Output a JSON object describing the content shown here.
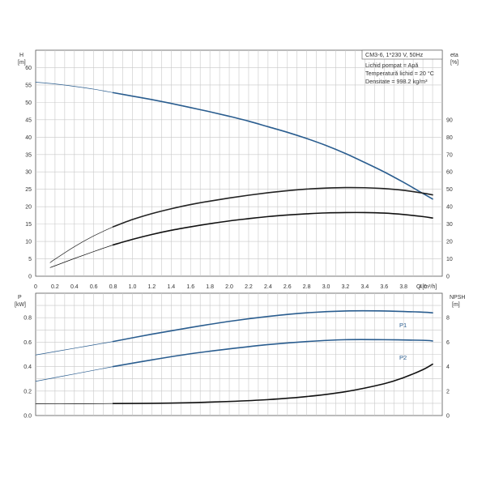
{
  "chart_data": [
    {
      "id": "top",
      "type": "line",
      "x_axis": {
        "label": "Q [m³/h]",
        "range": [
          0,
          4.2
        ],
        "ticks": [
          0,
          0.2,
          0.4,
          0.6,
          0.8,
          1.0,
          1.2,
          1.4,
          1.6,
          1.8,
          2.0,
          2.2,
          2.4,
          2.6,
          2.8,
          3.0,
          3.2,
          3.4,
          3.6,
          3.8,
          4.0
        ]
      },
      "y_left": {
        "label_top": "H",
        "label_unit": "[m]",
        "range": [
          0,
          65
        ],
        "ticks": [
          0,
          5,
          10,
          15,
          20,
          25,
          30,
          35,
          40,
          45,
          50,
          55,
          60
        ]
      },
      "y_right": {
        "label_top": "eta",
        "label_unit": "[%]",
        "range": [
          0,
          130
        ],
        "ticks": [
          0,
          10,
          20,
          30,
          40,
          50,
          60,
          70,
          80,
          90
        ]
      },
      "info_lines": [
        "CM3-6, 1*230 V, 50Hz",
        "Lichid pompat = Apă",
        "Temperatură lichid = 20 °C",
        "Densitate = 998.2 kg/m³"
      ],
      "series": [
        {
          "axis": "left",
          "color": "#2a5d8f",
          "x": [
            0,
            0.2,
            0.4,
            0.6,
            0.8,
            1.0,
            1.2,
            1.4,
            1.6,
            1.8,
            2.0,
            2.2,
            2.4,
            2.6,
            2.8,
            3.0,
            3.2,
            3.4,
            3.6,
            3.8,
            4.0,
            4.1
          ],
          "y": [
            55.8,
            55.3,
            54.6,
            53.8,
            52.8,
            51.8,
            50.8,
            49.7,
            48.5,
            47.3,
            46.0,
            44.6,
            43.0,
            41.4,
            39.6,
            37.6,
            35.3,
            32.7,
            30.0,
            27.0,
            23.8,
            22.2
          ],
          "operating_from": 0.8
        },
        {
          "axis": "right",
          "color": "#222222",
          "x": [
            0.15,
            0.2,
            0.4,
            0.6,
            0.8,
            1.0,
            1.2,
            1.4,
            1.6,
            1.8,
            2.0,
            2.2,
            2.4,
            2.6,
            2.8,
            3.0,
            3.2,
            3.4,
            3.6,
            3.8,
            4.0,
            4.1
          ],
          "y": [
            7.8,
            9.8,
            17.0,
            23.2,
            28.4,
            32.6,
            36.0,
            38.8,
            41.2,
            43.2,
            45.0,
            46.6,
            48.0,
            49.2,
            50.1,
            50.7,
            51.0,
            50.9,
            50.4,
            49.4,
            47.8,
            46.8
          ],
          "operating_from": 0.8
        },
        {
          "axis": "right",
          "color": "#111111",
          "x": [
            0.15,
            0.2,
            0.4,
            0.6,
            0.8,
            1.0,
            1.2,
            1.4,
            1.6,
            1.8,
            2.0,
            2.2,
            2.4,
            2.6,
            2.8,
            3.0,
            3.2,
            3.4,
            3.6,
            3.8,
            4.0,
            4.1
          ],
          "y": [
            5.0,
            6.0,
            10.2,
            14.2,
            18.0,
            21.2,
            24.0,
            26.4,
            28.4,
            30.2,
            31.8,
            33.1,
            34.3,
            35.2,
            35.9,
            36.4,
            36.6,
            36.6,
            36.3,
            35.5,
            34.3,
            33.5
          ],
          "operating_from": 0.8
        }
      ]
    },
    {
      "id": "bottom",
      "type": "line",
      "x_axis": {
        "range": [
          0,
          4.2
        ]
      },
      "y_left": {
        "label_top": "P",
        "label_unit": "[kW]",
        "range": [
          0,
          1.0
        ],
        "ticks": [
          0,
          0.2,
          0.4,
          0.6,
          0.8
        ]
      },
      "y_right": {
        "label_top": "NPSH",
        "label_unit": "[m]",
        "range": [
          0,
          10
        ],
        "ticks": [
          0,
          2,
          4,
          6,
          8
        ]
      },
      "series": [
        {
          "name": "P1",
          "axis": "left",
          "color": "#2a5d8f",
          "x": [
            0,
            0.4,
            0.8,
            1.2,
            1.6,
            2.0,
            2.4,
            2.8,
            3.2,
            3.6,
            4.0,
            4.1
          ],
          "y": [
            0.495,
            0.55,
            0.605,
            0.665,
            0.72,
            0.77,
            0.81,
            0.84,
            0.855,
            0.855,
            0.845,
            0.84
          ],
          "operating_from": 0.8
        },
        {
          "name": "P2",
          "axis": "left",
          "color": "#2a5d8f",
          "x": [
            0,
            0.4,
            0.8,
            1.2,
            1.6,
            2.0,
            2.4,
            2.8,
            3.2,
            3.6,
            4.0,
            4.1
          ],
          "y": [
            0.28,
            0.34,
            0.4,
            0.455,
            0.505,
            0.545,
            0.58,
            0.605,
            0.62,
            0.62,
            0.615,
            0.61
          ],
          "operating_from": 0.8
        },
        {
          "axis": "right",
          "color": "#111111",
          "x": [
            0,
            0.4,
            0.8,
            1.2,
            1.6,
            2.0,
            2.4,
            2.8,
            3.2,
            3.6,
            3.8,
            4.0,
            4.1
          ],
          "y": [
            0.95,
            0.95,
            0.98,
            1.0,
            1.05,
            1.15,
            1.3,
            1.55,
            1.95,
            2.6,
            3.1,
            3.75,
            4.2
          ],
          "operating_from": 0.8
        }
      ]
    }
  ]
}
